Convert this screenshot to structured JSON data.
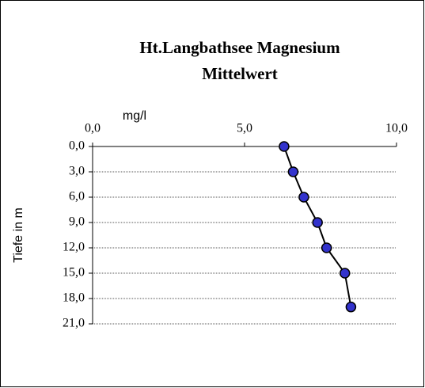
{
  "chart_data": {
    "type": "line",
    "orientation": "vertical",
    "title": [
      "Ht.Langbathsee Magnesium",
      "Mittelwert"
    ],
    "xlabel": "mg/l",
    "ylabel": "Tiefe in m",
    "xlim": [
      0,
      10
    ],
    "xticks": [
      {
        "value": 0,
        "label": "0,0"
      },
      {
        "value": 5,
        "label": "5,0"
      },
      {
        "value": 10,
        "label": "10,0"
      }
    ],
    "ylim": [
      0,
      21
    ],
    "y_inverted": true,
    "yticks": [
      {
        "value": 0,
        "label": "0,0"
      },
      {
        "value": 3,
        "label": "3,0"
      },
      {
        "value": 6,
        "label": "6,0"
      },
      {
        "value": 9,
        "label": "9,0"
      },
      {
        "value": 12,
        "label": "12,0"
      },
      {
        "value": 15,
        "label": "15,0"
      },
      {
        "value": 18,
        "label": "18,0"
      },
      {
        "value": 21,
        "label": "21,0"
      }
    ],
    "grid": true,
    "depths": [
      0,
      3,
      6,
      9,
      12,
      15,
      19
    ],
    "values": [
      6.3,
      6.6,
      6.95,
      7.4,
      7.7,
      8.3,
      8.5
    ],
    "color": "#3333cc"
  }
}
